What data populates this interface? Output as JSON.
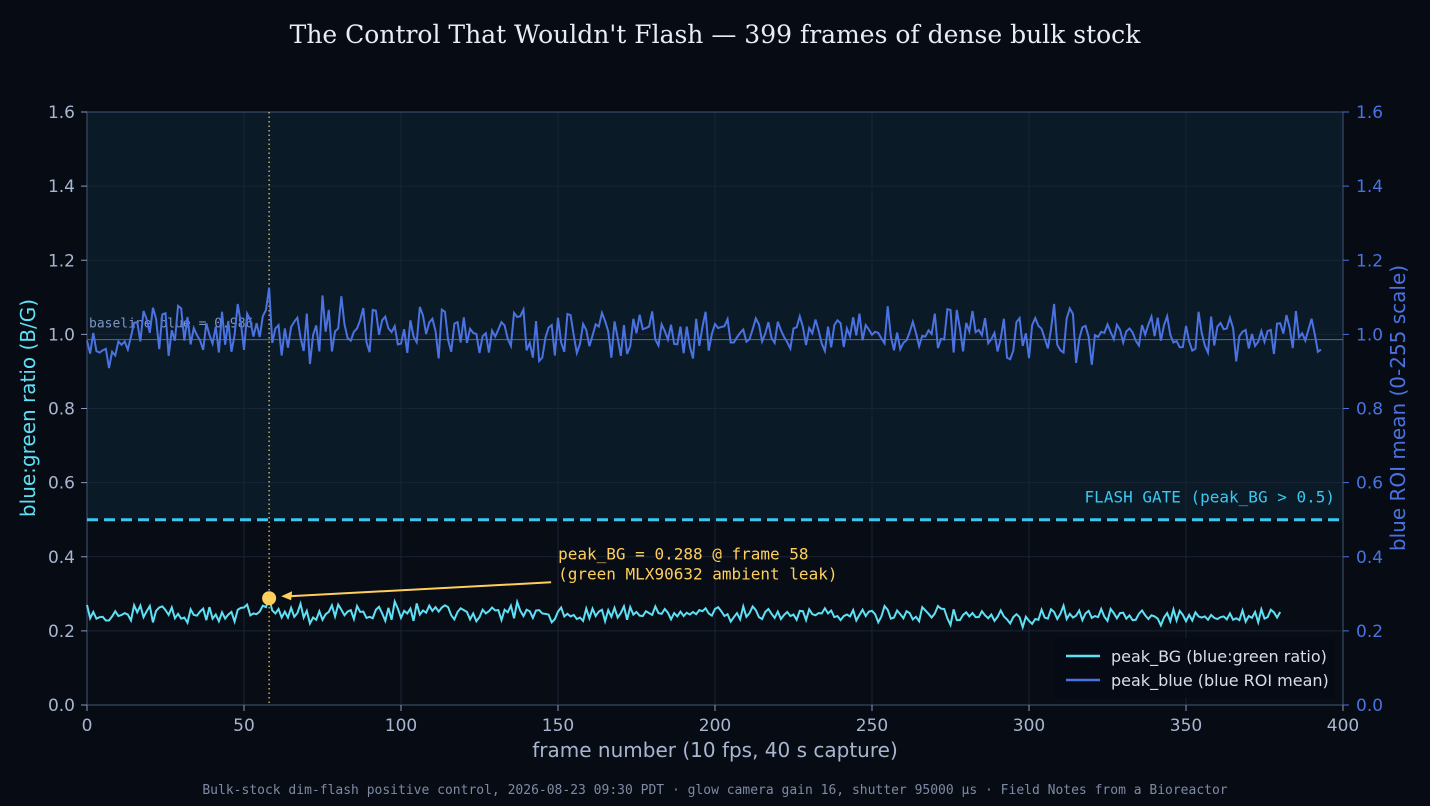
{
  "chart_data": {
    "type": "line",
    "title": "The Control That Wouldn't Flash — 399 frames of dense bulk stock",
    "xlabel": "frame number (10 fps, 40 s capture)",
    "ylabel_left": "blue:green ratio (B/G)",
    "ylabel_right": "blue ROI mean (0-255 scale)",
    "xlim": [
      0,
      400
    ],
    "ylim_left": [
      0,
      1.6
    ],
    "ylim_right": [
      0,
      1.6
    ],
    "x_ticks": [
      0,
      50,
      100,
      150,
      200,
      250,
      300,
      350,
      400
    ],
    "y_ticks": [
      "0.0",
      "0.2",
      "0.4",
      "0.6",
      "0.8",
      "1.0",
      "1.2",
      "1.4",
      "1.6"
    ],
    "grid": true,
    "legend_position": "bottom-right",
    "series": [
      {
        "name": "peak_BG (blue:green ratio)",
        "axis": "left",
        "color": "#5ee0f5",
        "values": [
          0.27,
          0.234,
          0.251,
          0.233,
          0.237,
          0.238,
          0.228,
          0.228,
          0.239,
          0.253,
          0.24,
          0.243,
          0.248,
          0.244,
          0.228,
          0.269,
          0.25,
          0.268,
          0.237,
          0.253,
          0.267,
          0.223,
          0.254,
          0.263,
          0.266,
          0.256,
          0.243,
          0.263,
          0.234,
          0.246,
          0.233,
          0.236,
          0.222,
          0.258,
          0.243,
          0.241,
          0.252,
          0.26,
          0.229,
          0.264,
          0.233,
          0.244,
          0.226,
          0.25,
          0.233,
          0.244,
          0.251,
          0.225,
          0.257,
          0.262,
          0.263,
          0.271,
          0.242,
          0.247,
          0.245,
          0.252,
          0.268,
          0.264,
          0.288,
          0.255,
          0.247,
          0.259,
          0.236,
          0.252,
          0.236,
          0.262,
          0.238,
          0.248,
          0.273,
          0.236,
          0.254,
          0.22,
          0.236,
          0.23,
          0.253,
          0.23,
          0.245,
          0.251,
          0.269,
          0.239,
          0.271,
          0.257,
          0.242,
          0.252,
          0.256,
          0.232,
          0.267,
          0.251,
          0.252,
          0.235,
          0.238,
          0.234,
          0.257,
          0.265,
          0.247,
          0.227,
          0.262,
          0.23,
          0.279,
          0.26,
          0.235,
          0.254,
          0.247,
          0.26,
          0.227,
          0.274,
          0.244,
          0.255,
          0.249,
          0.268,
          0.254,
          0.264,
          0.252,
          0.263,
          0.269,
          0.264,
          0.242,
          0.231,
          0.251,
          0.261,
          0.256,
          0.251,
          0.231,
          0.247,
          0.226,
          0.237,
          0.257,
          0.247,
          0.253,
          0.263,
          0.255,
          0.256,
          0.229,
          0.257,
          0.25,
          0.268,
          0.234,
          0.278,
          0.254,
          0.24,
          0.257,
          0.253,
          0.235,
          0.255,
          0.256,
          0.247,
          0.246,
          0.244,
          0.223,
          0.232,
          0.252,
          0.263,
          0.239,
          0.246,
          0.239,
          0.243,
          0.232,
          0.236,
          0.227,
          0.26,
          0.234,
          0.26,
          0.24,
          0.252,
          0.257,
          0.226,
          0.256,
          0.238,
          0.262,
          0.236,
          0.248,
          0.266,
          0.23,
          0.264,
          0.244,
          0.251,
          0.241,
          0.24,
          0.253,
          0.248,
          0.243,
          0.266,
          0.248,
          0.246,
          0.259,
          0.249,
          0.231,
          0.248,
          0.239,
          0.252,
          0.24,
          0.249,
          0.244,
          0.251,
          0.245,
          0.256,
          0.253,
          0.261,
          0.247,
          0.241,
          0.259,
          0.264,
          0.253,
          0.24,
          0.245,
          0.225,
          0.237,
          0.248,
          0.231,
          0.266,
          0.238,
          0.248,
          0.266,
          0.256,
          0.237,
          0.232,
          0.251,
          0.259,
          0.246,
          0.235,
          0.252,
          0.232,
          0.243,
          0.251,
          0.24,
          0.244,
          0.23,
          0.254,
          0.253,
          0.229,
          0.258,
          0.245,
          0.242,
          0.248,
          0.247,
          0.261,
          0.247,
          0.255,
          0.237,
          0.24,
          0.229,
          0.24,
          0.244,
          0.239,
          0.256,
          0.228,
          0.243,
          0.257,
          0.24,
          0.252,
          0.254,
          0.245,
          0.223,
          0.239,
          0.267,
          0.257,
          0.233,
          0.236,
          0.255,
          0.245,
          0.234,
          0.253,
          0.248,
          0.231,
          0.238,
          0.226,
          0.264,
          0.255,
          0.246,
          0.236,
          0.247,
          0.267,
          0.26,
          0.259,
          0.234,
          0.216,
          0.258,
          0.229,
          0.229,
          0.243,
          0.25,
          0.239,
          0.248,
          0.237,
          0.237,
          0.253,
          0.242,
          0.234,
          0.244,
          0.227,
          0.238,
          0.255,
          0.239,
          0.231,
          0.22,
          0.237,
          0.245,
          0.237,
          0.21,
          0.238,
          0.227,
          0.219,
          0.232,
          0.23,
          0.257,
          0.236,
          0.233,
          0.258,
          0.251,
          0.232,
          0.246,
          0.268,
          0.232,
          0.246,
          0.236,
          0.241,
          0.255,
          0.229,
          0.247,
          0.254,
          0.235,
          0.24,
          0.237,
          0.259,
          0.238,
          0.227,
          0.259,
          0.248,
          0.234,
          0.248,
          0.249,
          0.233,
          0.242,
          0.229,
          0.23,
          0.246,
          0.255,
          0.242,
          0.232,
          0.242,
          0.239,
          0.233,
          0.215,
          0.236,
          0.248,
          0.226,
          0.258,
          0.228,
          0.254,
          0.243,
          0.226,
          0.243,
          0.228,
          0.25,
          0.239,
          0.236,
          0.239,
          0.23,
          0.243,
          0.235,
          0.232,
          0.237,
          0.239,
          0.231,
          0.247,
          0.23,
          0.234,
          0.229,
          0.255,
          0.225,
          0.24,
          0.235,
          0.251,
          0.223,
          0.258,
          0.233,
          0.237,
          0.257,
          0.25,
          0.236,
          0.251
        ]
      },
      {
        "name": "peak_blue (blue ROI mean)",
        "axis": "right",
        "color": "#4a72e0",
        "values": [
          0.983,
          0.948,
          1.004,
          0.955,
          0.951,
          0.957,
          0.961,
          0.909,
          0.953,
          0.943,
          0.981,
          0.972,
          0.981,
          0.959,
          0.994,
          1.031,
          1.033,
          0.981,
          1.063,
          1.041,
          1.004,
          1.072,
          1.042,
          0.96,
          1.054,
          1.057,
          0.942,
          1.011,
          0.983,
          1.077,
          1.07,
          0.983,
          1.047,
          0.973,
          1.017,
          0.998,
          0.984,
          0.958,
          1.03,
          0.998,
          0.975,
          1.021,
          0.951,
          1.061,
          0.972,
          1.036,
          0.953,
          0.998,
          1.082,
          1.031,
          0.958,
          1.056,
          1.039,
          0.994,
          1.03,
          0.993,
          1.049,
          1.066,
          1.126,
          0.977,
          1.016,
          1.025,
          0.943,
          1.016,
          0.964,
          1.02,
          1.034,
          1.045,
          0.991,
          0.955,
          1.056,
          0.92,
          0.998,
          1.024,
          0.954,
          1.105,
          1.007,
          1.066,
          0.954,
          1.008,
          1.016,
          1.103,
          1.027,
          0.99,
          0.983,
          1.007,
          1.016,
          1.039,
          1.071,
          0.979,
          0.952,
          1.066,
          1.064,
          0.999,
          1.038,
          1.048,
          1.016,
          1.006,
          1.022,
          0.973,
          0.975,
          1.014,
          0.95,
          1.038,
          0.994,
          0.979,
          1.074,
          1.051,
          1.001,
          1.032,
          1.042,
          1.009,
          0.935,
          1.067,
          1.061,
          0.985,
          0.953,
          1.029,
          1.033,
          0.978,
          1.046,
          0.977,
          1.015,
          1.004,
          1.001,
          0.95,
          0.995,
          1.003,
          0.951,
          1.01,
          0.994,
          1.013,
          1.033,
          1.024,
          0.988,
          0.969,
          1.058,
          1.047,
          1.049,
          1.067,
          0.957,
          0.977,
          0.937,
          1.036,
          0.928,
          0.937,
          0.991,
          1.018,
          1.025,
          0.943,
          1.045,
          0.978,
          0.953,
          1.055,
          1.052,
          0.998,
          0.95,
          0.974,
          1.028,
          1.012,
          0.968,
          0.997,
          1.027,
          1.021,
          1.058,
          1.036,
          1.008,
          0.937,
          1.035,
          0.991,
          0.942,
          1.025,
          0.947,
          0.968,
          1.042,
          1.003,
          1.053,
          1.014,
          1.017,
          1.021,
          1.062,
          0.986,
          0.97,
          1.027,
          1.009,
          0.986,
          1.026,
          0.974,
          0.973,
          1.021,
          0.949,
          1.021,
          0.967,
          0.935,
          1.042,
          0.969,
          1.02,
          1.061,
          0.956,
          1.001,
          1.028,
          1.017,
          1.02,
          1.022,
          1.041,
          0.978,
          0.978,
          0.992,
          1.004,
          1.013,
          0.98,
          0.987,
          1.014,
          1.043,
          1.027,
          0.981,
          1.002,
          1.033,
          0.99,
          0.977,
          1.034,
          1.011,
          0.993,
          0.979,
          0.962,
          1.016,
          1.019,
          1.049,
          1.02,
          0.971,
          1.017,
          1.003,
          1.04,
          1.01,
          0.975,
          0.955,
          1.021,
          0.965,
          1.025,
          1.038,
          1.03,
          0.966,
          1.016,
          0.995,
          1.046,
          0.997,
          1.056,
          0.984,
          1.025,
          1.013,
          0.999,
          1.007,
          1.004,
          0.989,
          0.976,
          1.076,
          0.995,
          0.957,
          1.005,
          0.96,
          0.977,
          0.984,
          1.006,
          1.034,
          1.004,
          0.968,
          0.996,
          0.994,
          1.011,
          1.001,
          1.056,
          0.963,
          0.988,
          0.986,
          1.068,
          1.066,
          0.951,
          1.066,
          1.016,
          0.954,
          1.031,
          1.008,
          1.063,
          1.006,
          1.012,
          0.998,
          1.044,
          0.976,
          0.987,
          1.004,
          0.954,
          0.989,
          1.042,
          0.937,
          0.933,
          0.956,
          1.033,
          1.044,
          0.969,
          1.003,
          0.936,
          1.025,
          1.044,
          1.023,
          1.015,
          0.989,
          0.962,
          1.013,
          1.082,
          0.972,
          0.957,
          0.951,
          1.043,
          1.07,
          1.055,
          0.923,
          0.988,
          1.019,
          1.023,
          0.993,
          0.918,
          0.998,
          0.993,
          1.007,
          1.004,
          1.027,
          1.006,
          0.987,
          1.026,
          1.012,
          0.978,
          1.008,
          1.016,
          1.005,
          0.983,
          0.97,
          1.025,
          0.999,
          1.026,
          1.048,
          0.995,
          1.045,
          0.983,
          1.025,
          1.049,
          0.999,
          0.978,
          0.982,
          0.965,
          0.966,
          1.023,
          0.981,
          0.956,
          0.961,
          1.061,
          1.004,
          0.97,
          0.951,
          1.048,
          0.97,
          1.021,
          1.031,
          1.014,
          1.016,
          1.045,
          1.017,
          0.927,
          0.995,
          1.007,
          1.012,
          0.962,
          1.001,
          0.969,
          0.98,
          1.009,
          0.98,
          1.009,
          1.012,
          0.947,
          1.029,
          1.03,
          1.002,
          1.052,
          1.018,
          0.963,
          1.063,
          0.992,
          1.003,
          0.983,
          1.013,
          1.042,
          1.001,
          0.953,
          0.959
        ]
      }
    ],
    "flash_gate": {
      "value": 0.5,
      "label": "FLASH GATE (peak_BG > 0.5)",
      "color": "#3ac8f0"
    },
    "baseline": {
      "value": 0.986,
      "label": "baseline blue = 0.986"
    },
    "peak": {
      "frame": 58,
      "value": 0.288,
      "label_line1": "peak_BG = 0.288 @ frame 58",
      "label_line2": "(green MLX90632 ambient leak)",
      "color": "#ffcf5e"
    },
    "footer": "Bulk-stock dim-flash positive control, 2026-08-23 09:30 PDT · glow camera gain 16, shutter 95000 µs · Field Notes from a Bioreactor"
  }
}
